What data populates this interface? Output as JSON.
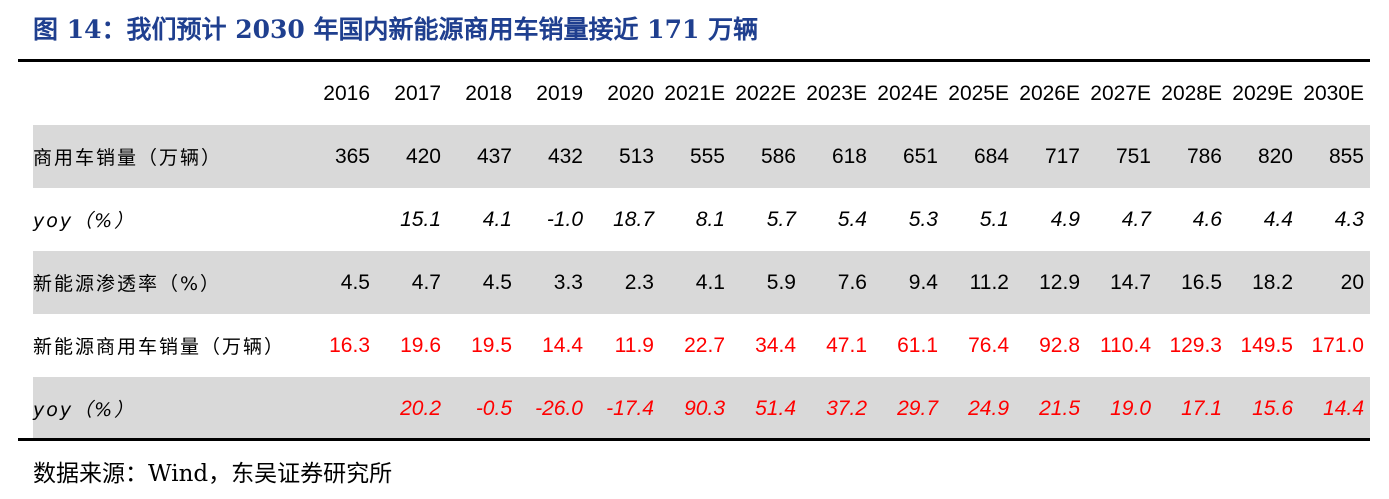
{
  "title": "图 14：我们预计 2030 年国内新能源商用车销量接近 171 万辆",
  "source": "数据来源：Wind，东吴证券研究所",
  "colors": {
    "title": "#1f3f8f",
    "highlight": "#ff0000",
    "shade": "#d9d9d9"
  },
  "chart_data": {
    "type": "table",
    "columns": [
      "2016",
      "2017",
      "2018",
      "2019",
      "2020",
      "2021E",
      "2022E",
      "2023E",
      "2024E",
      "2025E",
      "2026E",
      "2027E",
      "2028E",
      "2029E",
      "2030E"
    ],
    "rows": [
      {
        "label": "商用车销量（万辆）",
        "values": [
          "365",
          "420",
          "437",
          "432",
          "513",
          "555",
          "586",
          "618",
          "651",
          "684",
          "717",
          "751",
          "786",
          "820",
          "855"
        ]
      },
      {
        "label": "yoy（%）",
        "values": [
          "",
          "15.1",
          "4.1",
          "-1.0",
          "18.7",
          "8.1",
          "5.7",
          "5.4",
          "5.3",
          "5.1",
          "4.9",
          "4.7",
          "4.6",
          "4.4",
          "4.3"
        ]
      },
      {
        "label": "新能源渗透率（%）",
        "values": [
          "4.5",
          "4.7",
          "4.5",
          "3.3",
          "2.3",
          "4.1",
          "5.9",
          "7.6",
          "9.4",
          "11.2",
          "12.9",
          "14.7",
          "16.5",
          "18.2",
          "20"
        ]
      },
      {
        "label": "新能源商用车销量（万辆）",
        "values": [
          "16.3",
          "19.6",
          "19.5",
          "14.4",
          "11.9",
          "22.7",
          "34.4",
          "47.1",
          "61.1",
          "76.4",
          "92.8",
          "110.4",
          "129.3",
          "149.5",
          "171.0"
        ]
      },
      {
        "label": "yoy（%）",
        "values": [
          "",
          "20.2",
          "-0.5",
          "-26.0",
          "-17.4",
          "90.3",
          "51.4",
          "37.2",
          "29.7",
          "24.9",
          "21.5",
          "19.0",
          "17.1",
          "15.6",
          "14.4"
        ]
      }
    ]
  }
}
